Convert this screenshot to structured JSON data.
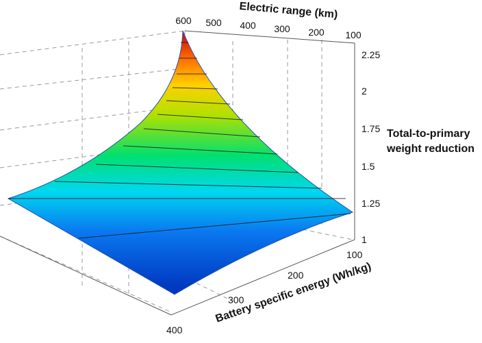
{
  "chart_data": {
    "type": "surface",
    "title": "",
    "x_axis": {
      "label": "Electric range (km)",
      "ticks": [
        600,
        500,
        400,
        300,
        200,
        100
      ],
      "range": [
        100,
        600
      ]
    },
    "y_axis": {
      "label": "Battery specific energy (Wh/kg)",
      "ticks": [
        100,
        200,
        300,
        400
      ],
      "range": [
        100,
        400
      ]
    },
    "z_axis": {
      "label_line1": "Total-to-primary",
      "label_line2": "weight reduction",
      "ticks": [
        "1",
        "1.25",
        "1.5",
        "1.75",
        "2",
        "2.25"
      ],
      "range": [
        1,
        2.25
      ]
    },
    "surface_corners": [
      {
        "range_km": 600,
        "specific_energy_whkg": 100,
        "weight_reduction": 2.2
      },
      {
        "range_km": 100,
        "specific_energy_whkg": 100,
        "weight_reduction": 1.19
      },
      {
        "range_km": 600,
        "specific_energy_whkg": 400,
        "weight_reduction": 1.26
      },
      {
        "range_km": 100,
        "specific_energy_whkg": 400,
        "weight_reduction": 1.04
      }
    ],
    "colormap": [
      "#0038c0",
      "#0a78f0",
      "#00d8f0",
      "#00e070",
      "#b0e000",
      "#ffd000",
      "#ff7000",
      "#d01000"
    ],
    "grid": true
  }
}
